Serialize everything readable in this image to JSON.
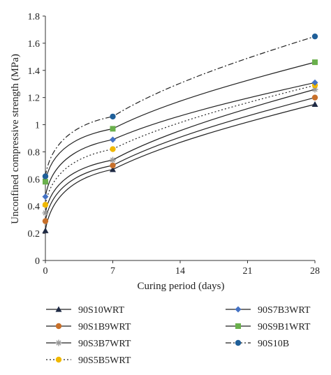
{
  "chart_data": {
    "type": "line",
    "title": "",
    "xlabel": "Curing period (days)",
    "ylabel": "Unconfined compressive strength (MPa)",
    "xlim": [
      0,
      28
    ],
    "ylim": [
      0,
      1.8
    ],
    "x_ticks": [
      "0",
      "7",
      "14",
      "21",
      "28"
    ],
    "y_ticks": [
      "0",
      "0.2",
      "0.4",
      "0.6",
      "0.8",
      "1",
      "1.2",
      "1.4",
      "1.6",
      "1.8"
    ],
    "x": [
      0,
      7,
      28
    ],
    "grid": false,
    "legend_position": "bottom",
    "series": [
      {
        "name": "90S10WRT",
        "values": [
          0.22,
          0.67,
          1.15
        ],
        "color": "#1f2a44",
        "marker": "triangle",
        "line": "solid"
      },
      {
        "name": "90S1B9WRT",
        "values": [
          0.29,
          0.7,
          1.2
        ],
        "color": "#c8702a",
        "marker": "circle",
        "line": "solid"
      },
      {
        "name": "90S3B7WRT",
        "values": [
          0.35,
          0.74,
          1.26
        ],
        "color": "#999999",
        "marker": "star",
        "line": "solid"
      },
      {
        "name": "90S5B5WRT",
        "values": [
          0.41,
          0.82,
          1.29
        ],
        "color": "#f0b800",
        "marker": "circle",
        "line": "dotted"
      },
      {
        "name": "90S7B3WRT",
        "values": [
          0.47,
          0.89,
          1.31
        ],
        "color": "#4472c4",
        "marker": "diamond",
        "line": "solid"
      },
      {
        "name": "90S9B1WRT",
        "values": [
          0.58,
          0.97,
          1.46
        ],
        "color": "#6ab04c",
        "marker": "square",
        "line": "solid"
      },
      {
        "name": "90S10B",
        "values": [
          0.62,
          1.06,
          1.65
        ],
        "color": "#1f5f99",
        "marker": "circle",
        "line": "dashdot"
      }
    ]
  }
}
